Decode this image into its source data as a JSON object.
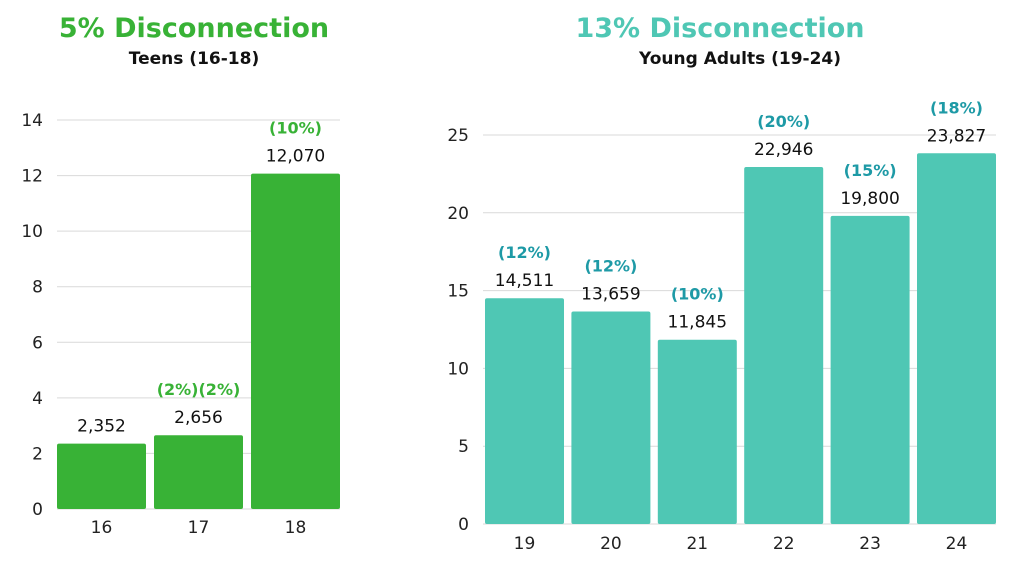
{
  "colors": {
    "teen": "#38b236",
    "adult": "#4fc7b4",
    "adult_pct": "#1e9aa6",
    "grid": "#d9d9d9"
  },
  "chart_data": [
    {
      "type": "bar",
      "title": "5% Disconnection",
      "subtitle": "Teens (16-18)",
      "categories": [
        "16",
        "17",
        "18"
      ],
      "values": [
        2.352,
        2.656,
        12.07
      ],
      "value_labels": [
        "2,352",
        "2,656",
        "12,070"
      ],
      "pct_labels": [
        "",
        "(2%)(2%)",
        "(10%)"
      ],
      "yticks": [
        "0",
        "2",
        "4",
        "6",
        "8",
        "10",
        "12",
        "14"
      ],
      "ylim": [
        0,
        14
      ],
      "grid": true
    },
    {
      "type": "bar",
      "title": "13% Disconnection",
      "subtitle": "Young Adults (19-24)",
      "categories": [
        "19",
        "20",
        "21",
        "22",
        "23",
        "24"
      ],
      "values": [
        14.511,
        13.659,
        11.845,
        22.946,
        19.8,
        23.827
      ],
      "value_labels": [
        "14,511",
        "13,659",
        "11,845",
        "22,946",
        "19,800",
        "23,827"
      ],
      "pct_labels": [
        "(12%)",
        "(12%)",
        "(10%)",
        "(20%)",
        "(15%)",
        "(18%)"
      ],
      "yticks": [
        "0",
        "5",
        "10",
        "15",
        "20",
        "25"
      ],
      "ylim": [
        0,
        25
      ],
      "grid": true
    }
  ]
}
